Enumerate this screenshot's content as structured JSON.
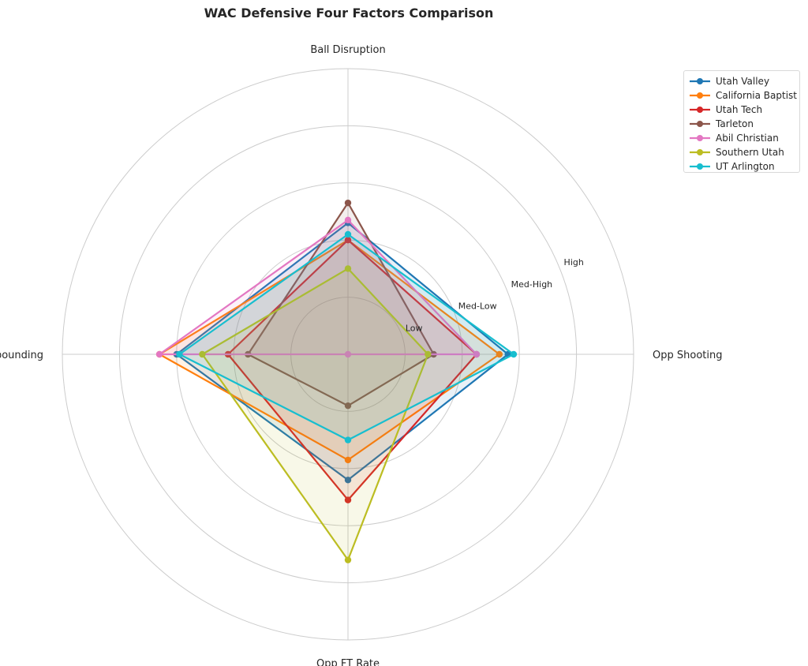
{
  "chart_data": {
    "type": "radar",
    "title": "WAC Defensive Four Factors Comparison",
    "axes": [
      "Ball Disruption",
      "Opp Shooting",
      "Opp FT Rate",
      "Def Rebounding"
    ],
    "rings": [
      1,
      2,
      3,
      4,
      5
    ],
    "ring_labels": [
      {
        "value": 1,
        "label": "Low"
      },
      {
        "value": 2,
        "label": "Med-Low"
      },
      {
        "value": 3,
        "label": "Med-High"
      },
      {
        "value": 4,
        "label": "High"
      }
    ],
    "rmax": 5,
    "grid": true,
    "legend_position": "top-right",
    "series": [
      {
        "name": "Utah Valley",
        "color": "#1f77b4",
        "values": [
          2.3,
          2.8,
          2.2,
          3.0
        ]
      },
      {
        "name": "California Baptist",
        "color": "#ff7f0e",
        "values": [
          2.0,
          2.65,
          1.85,
          3.3
        ]
      },
      {
        "name": "Utah Tech",
        "color": "#d62728",
        "values": [
          2.0,
          2.25,
          2.55,
          2.1
        ]
      },
      {
        "name": "Tarleton",
        "color": "#8c564b",
        "values": [
          2.65,
          1.5,
          0.9,
          1.75
        ]
      },
      {
        "name": "Abil Christian",
        "color": "#e377c2",
        "values": [
          2.35,
          2.25,
          0.0,
          3.3
        ]
      },
      {
        "name": "Southern Utah",
        "color": "#bcbd22",
        "values": [
          1.5,
          1.4,
          3.6,
          2.55
        ]
      },
      {
        "name": "UT Arlington",
        "color": "#17becf",
        "values": [
          2.1,
          2.9,
          1.5,
          2.95
        ]
      }
    ]
  }
}
